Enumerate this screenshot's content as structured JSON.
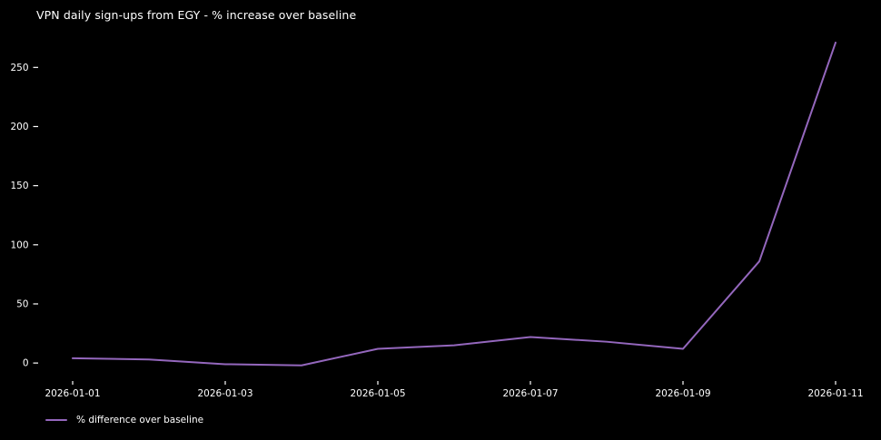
{
  "chart_data": {
    "type": "line",
    "title": "VPN daily sign-ups from EGY - % increase over baseline",
    "x": [
      "2026-01-01",
      "2026-01-02",
      "2026-01-03",
      "2026-01-04",
      "2026-01-05",
      "2026-01-06",
      "2026-01-07",
      "2026-01-08",
      "2026-01-09",
      "2026-01-10",
      "2026-01-11"
    ],
    "series": [
      {
        "name": "% difference over baseline",
        "color": "#9467bd",
        "values": [
          4,
          3,
          -1,
          -2,
          12,
          15,
          22,
          18,
          12,
          86,
          271
        ]
      }
    ],
    "xticks": [
      "2026-01-01",
      "2026-01-03",
      "2026-01-05",
      "2026-01-07",
      "2026-01-09",
      "2026-01-11"
    ],
    "yticks": [
      0,
      50,
      100,
      150,
      200,
      250
    ],
    "ylim": [
      -16,
      285
    ],
    "xlabel": "",
    "ylabel": "",
    "grid": false,
    "legend_position": "lower-left",
    "colors": {
      "background": "#000000",
      "text": "#ffffff"
    }
  }
}
